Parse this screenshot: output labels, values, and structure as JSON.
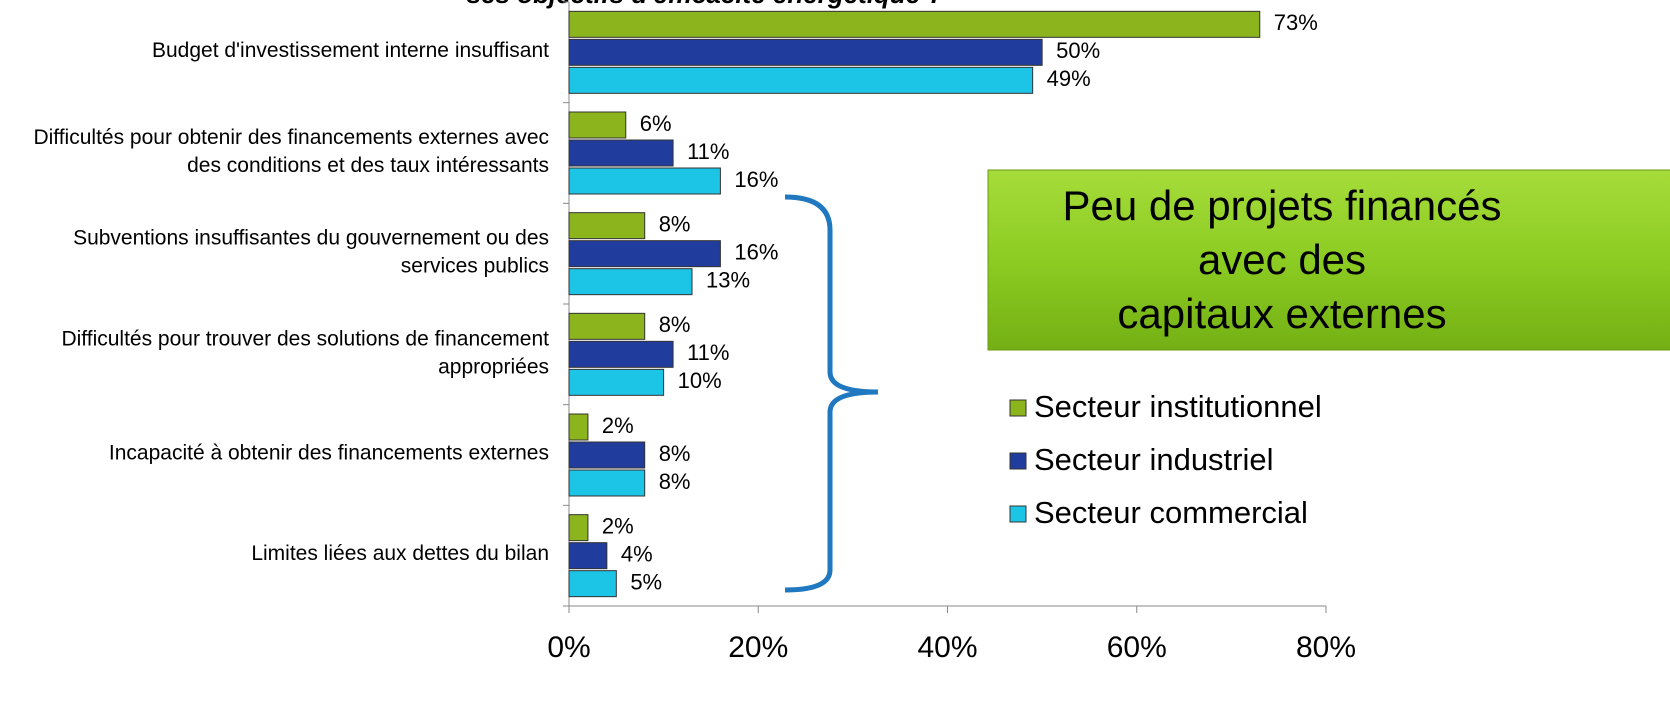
{
  "chart_data": {
    "type": "bar",
    "orientation": "horizontal",
    "title": "ses objectifs d'efficacité énergétique ?",
    "categories": [
      "Budget d'investissement interne insuffisant",
      "Difficultés pour obtenir des financements externes avec\ndes conditions et des taux intéressants",
      "Subventions insuffisantes du gouvernement ou des\nservices publics",
      "Difficultés pour trouver des solutions de financement\nappropriées",
      "Incapacité à obtenir des financements externes",
      "Limites liées aux dettes du bilan"
    ],
    "series": [
      {
        "name": "Secteur institutionnel",
        "color": "#8cb41c",
        "values": [
          73,
          6,
          8,
          8,
          2,
          2
        ],
        "value_labels": [
          "73%",
          "6%",
          "8%",
          "8%",
          "2%",
          "2%"
        ]
      },
      {
        "name": "Secteur industriel",
        "color": "#203c9c",
        "values": [
          50,
          11,
          16,
          11,
          8,
          4
        ],
        "value_labels": [
          "50%",
          "11%",
          "16%",
          "11%",
          "8%",
          "4%"
        ]
      },
      {
        "name": "Secteur commercial",
        "color": "#1cc4e6",
        "values": [
          49,
          16,
          13,
          10,
          8,
          5
        ],
        "value_labels": [
          "49%",
          "16%",
          "13%",
          "10%",
          "8%",
          "5%"
        ]
      }
    ],
    "xlim": [
      0,
      80
    ],
    "xticks": [
      {
        "value": 0,
        "label": "0%"
      },
      {
        "value": 20,
        "label": "20%"
      },
      {
        "value": 40,
        "label": "40%"
      },
      {
        "value": 60,
        "label": "60%"
      },
      {
        "value": 80,
        "label": "80%"
      }
    ],
    "grid": false,
    "legend": "right",
    "annotation": [
      "Peu de projets financés",
      "avec des",
      "capitaux externes"
    ]
  }
}
